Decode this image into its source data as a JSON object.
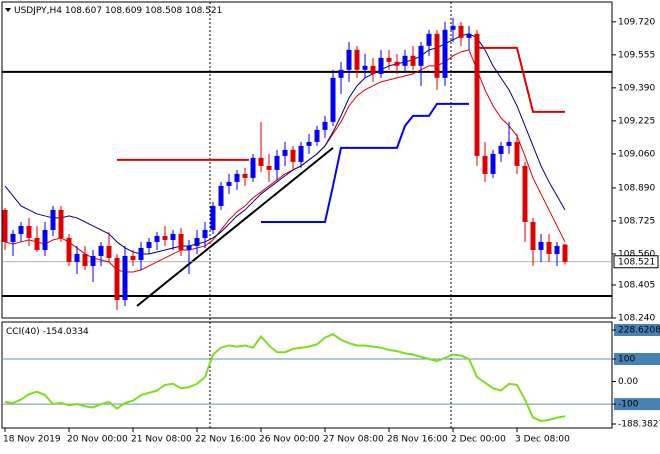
{
  "chart_data": [
    {
      "type": "candlestick",
      "title": "USDJPY,H4",
      "bull_color": "#0000ff",
      "bear_color": "#e00000",
      "open": [
        108.78,
        108.62,
        108.66,
        108.7,
        108.64,
        108.58,
        108.68,
        108.78,
        108.64,
        108.52,
        108.56,
        108.5,
        108.55,
        108.6,
        108.54,
        108.33,
        108.55,
        108.53,
        108.59,
        108.62,
        108.65,
        108.63,
        108.66,
        108.58,
        108.6,
        108.64,
        108.68,
        108.8,
        108.9,
        108.92,
        108.96,
        108.94,
        109.04,
        109.0,
        108.98,
        109.05,
        109.08,
        109.02,
        109.1,
        109.12,
        109.18,
        109.22,
        109.44,
        109.48,
        109.58,
        109.48,
        109.5,
        109.46,
        109.54,
        109.52,
        109.5,
        109.55,
        109.5,
        109.6,
        109.66,
        109.44,
        109.68,
        109.7,
        109.64,
        109.66,
        109.05,
        108.96,
        109.06,
        109.1,
        109.12,
        109.0,
        108.72,
        108.58,
        108.62,
        108.56,
        108.607
      ],
      "high": [
        108.79,
        108.68,
        108.72,
        108.74,
        108.7,
        108.72,
        108.8,
        108.8,
        108.66,
        108.6,
        108.6,
        108.58,
        108.62,
        108.67,
        108.56,
        108.6,
        108.58,
        108.62,
        108.64,
        108.67,
        108.7,
        108.68,
        108.69,
        108.63,
        108.68,
        108.72,
        108.82,
        108.92,
        108.96,
        108.98,
        108.99,
        109.06,
        109.22,
        109.06,
        109.08,
        109.12,
        109.1,
        109.12,
        109.16,
        109.2,
        109.25,
        109.48,
        109.52,
        109.62,
        109.6,
        109.56,
        109.54,
        109.58,
        109.58,
        109.56,
        109.58,
        109.6,
        109.62,
        109.68,
        109.68,
        109.72,
        109.74,
        109.72,
        109.7,
        109.68,
        109.12,
        109.08,
        109.12,
        109.22,
        109.16,
        109.02,
        108.74,
        108.66,
        108.66,
        108.62,
        108.609
      ],
      "low": [
        108.58,
        108.55,
        108.62,
        108.6,
        108.57,
        108.55,
        108.65,
        108.62,
        108.5,
        108.46,
        108.48,
        108.42,
        108.5,
        108.52,
        108.28,
        108.3,
        108.5,
        108.48,
        108.56,
        108.58,
        108.6,
        108.58,
        108.55,
        108.46,
        108.56,
        108.59,
        108.66,
        108.78,
        108.86,
        108.88,
        108.9,
        108.92,
        108.97,
        108.92,
        108.93,
        109.0,
        108.98,
        108.99,
        109.06,
        109.1,
        109.14,
        109.2,
        109.36,
        109.42,
        109.44,
        109.44,
        109.42,
        109.44,
        109.48,
        109.46,
        109.47,
        109.48,
        109.4,
        109.55,
        109.38,
        109.4,
        109.62,
        109.6,
        109.58,
        109.0,
        108.92,
        108.94,
        109.02,
        109.06,
        108.96,
        108.62,
        108.5,
        108.52,
        108.52,
        108.5,
        108.508
      ],
      "close": [
        108.62,
        108.66,
        108.7,
        108.64,
        108.58,
        108.68,
        108.78,
        108.64,
        108.52,
        108.56,
        108.5,
        108.55,
        108.6,
        108.54,
        108.33,
        108.55,
        108.53,
        108.59,
        108.62,
        108.65,
        108.63,
        108.66,
        108.58,
        108.6,
        108.64,
        108.68,
        108.8,
        108.9,
        108.92,
        108.96,
        108.94,
        109.04,
        109.0,
        108.98,
        109.05,
        109.08,
        109.02,
        109.1,
        109.12,
        109.18,
        109.22,
        109.44,
        109.48,
        109.58,
        109.48,
        109.5,
        109.46,
        109.54,
        109.52,
        109.5,
        109.55,
        109.5,
        109.6,
        109.66,
        109.44,
        109.68,
        109.7,
        109.64,
        109.66,
        109.05,
        108.96,
        109.06,
        109.1,
        109.12,
        109.0,
        108.72,
        108.58,
        108.62,
        108.56,
        108.6,
        108.521
      ],
      "series": [
        {
          "color": "#e00000",
          "values": [
            108.62,
            108.61,
            108.62,
            108.63,
            108.62,
            108.61,
            108.63,
            108.64,
            108.62,
            108.59,
            108.56,
            108.54,
            108.53,
            108.52,
            108.48,
            108.47,
            108.47,
            108.48,
            108.5,
            108.52,
            108.54,
            108.56,
            108.58,
            108.58,
            108.59,
            108.6,
            108.63,
            108.68,
            108.73,
            108.77,
            108.8,
            108.84,
            108.87,
            108.9,
            108.93,
            108.96,
            108.98,
            109.0,
            109.03,
            109.06,
            109.1,
            109.16,
            109.22,
            109.3,
            109.35,
            109.38,
            109.4,
            109.42,
            109.43,
            109.44,
            109.45,
            109.46,
            109.48,
            109.5,
            109.5,
            109.52,
            109.55,
            109.57,
            109.58,
            109.48,
            109.38,
            109.3,
            109.24,
            109.2,
            109.15,
            109.05,
            108.94,
            108.86,
            108.78,
            108.7,
            108.62
          ]
        },
        {
          "color": "#000080",
          "values": [
            108.9,
            108.85,
            108.8,
            108.78,
            108.76,
            108.75,
            108.74,
            108.74,
            108.75,
            108.74,
            108.72,
            108.7,
            108.68,
            108.66,
            108.62,
            108.59,
            108.57,
            108.56,
            108.56,
            108.57,
            108.58,
            108.59,
            108.6,
            108.6,
            108.61,
            108.62,
            108.64,
            108.67,
            108.71,
            108.75,
            108.78,
            108.82,
            108.86,
            108.89,
            108.92,
            108.95,
            108.98,
            109.0,
            109.03,
            109.06,
            109.1,
            109.17,
            109.25,
            109.34,
            109.4,
            109.44,
            109.46,
            109.48,
            109.5,
            109.51,
            109.52,
            109.53,
            109.55,
            109.58,
            109.59,
            109.61,
            109.63,
            109.65,
            109.66,
            109.64,
            109.58,
            109.5,
            109.44,
            109.38,
            109.3,
            109.2,
            109.1,
            109.0,
            108.92,
            108.85,
            108.78
          ]
        },
        {
          "color": "#0000ff",
          "values": [
            null,
            null,
            null,
            null,
            null,
            null,
            null,
            null,
            null,
            null,
            null,
            null,
            null,
            null,
            null,
            null,
            null,
            null,
            null,
            null,
            null,
            null,
            null,
            null,
            null,
            null,
            null,
            null,
            null,
            null,
            null,
            null,
            108.72,
            108.72,
            108.72,
            108.72,
            108.72,
            108.72,
            108.72,
            108.72,
            108.72,
            108.9,
            109.09,
            109.09,
            109.09,
            109.09,
            109.09,
            109.09,
            109.09,
            109.09,
            109.2,
            109.25,
            109.25,
            109.25,
            109.31,
            109.31,
            109.31,
            109.31,
            109.31,
            null,
            null,
            null,
            null,
            null,
            null,
            null,
            null,
            null,
            null,
            null,
            null
          ]
        },
        {
          "color": "#e00000",
          "values": [
            null,
            null,
            null,
            null,
            null,
            null,
            null,
            null,
            null,
            null,
            null,
            null,
            null,
            null,
            null,
            null,
            null,
            null,
            null,
            null,
            null,
            null,
            null,
            null,
            null,
            null,
            null,
            null,
            null,
            null,
            null,
            null,
            null,
            null,
            null,
            null,
            null,
            null,
            null,
            null,
            null,
            null,
            null,
            null,
            null,
            null,
            null,
            null,
            null,
            null,
            null,
            null,
            null,
            null,
            null,
            null,
            null,
            null,
            null,
            109.59,
            109.59,
            109.59,
            109.59,
            109.59,
            109.59,
            109.43,
            109.27,
            109.27,
            109.27,
            109.27,
            109.27
          ]
        }
      ],
      "levels": [
        109.47,
        108.35
      ],
      "segment": {
        "x": [
          14,
          30.5
        ],
        "y": 109.03,
        "color": "#e00000"
      },
      "trendline": {
        "x": [
          16.5,
          41
        ],
        "y": [
          108.3,
          109.09
        ]
      },
      "ylim": [
        108.24,
        109.819
      ],
      "yticks": [
        {
          "value": 109.72,
          "label": "109.720"
        },
        {
          "value": 109.555,
          "label": "109.555"
        },
        {
          "value": 109.39,
          "label": "109.390"
        },
        {
          "value": 109.225,
          "label": "109.225"
        },
        {
          "value": 109.06,
          "label": "109.060"
        },
        {
          "value": 108.89,
          "label": "108.890"
        },
        {
          "value": 108.725,
          "label": "108.725"
        },
        {
          "value": 108.56,
          "label": "108.560"
        },
        {
          "value": 108.405,
          "label": "108.405"
        },
        {
          "value": 108.24,
          "label": "108.240"
        }
      ],
      "xticks": [
        {
          "value": 0,
          "label": "18 Nov 2019"
        },
        {
          "value": 8,
          "label": "20 Nov 00:00"
        },
        {
          "value": 16,
          "label": "21 Nov 08:00"
        },
        {
          "value": 24,
          "label": "22 Nov 16:00"
        },
        {
          "value": 32,
          "label": "26 Nov 00:00"
        },
        {
          "value": 40,
          "label": "27 Nov 08:00"
        },
        {
          "value": 48,
          "label": "28 Nov 16:00"
        },
        {
          "value": 56,
          "label": "2 Dec 00:00"
        },
        {
          "value": 64,
          "label": "3 Dec 08:00"
        }
      ]
    },
    {
      "type": "line",
      "title": "CCI(40)",
      "color": "#7fdd1f",
      "values": [
        -90,
        -95,
        -80,
        -56,
        -45,
        -60,
        -100,
        -95,
        -105,
        -100,
        -110,
        -115,
        -100,
        -90,
        -120,
        -95,
        -85,
        -60,
        -50,
        -40,
        -15,
        -10,
        -30,
        -25,
        -10,
        20,
        120,
        150,
        160,
        155,
        160,
        150,
        200,
        160,
        130,
        130,
        145,
        150,
        155,
        165,
        195,
        210,
        185,
        170,
        160,
        160,
        155,
        150,
        140,
        135,
        125,
        120,
        110,
        100,
        90,
        105,
        120,
        115,
        100,
        20,
        -5,
        -30,
        -40,
        -10,
        -15,
        -80,
        -160,
        -175,
        -170,
        -160,
        -154.0334
      ],
      "levels": [
        100,
        -100
      ],
      "ylim": [
        -188.3827,
        228.6208
      ],
      "yticks": [
        228.6208,
        100,
        {
          "value": 0,
          "label": "0.00"
        },
        -100,
        -188.3827
      ]
    }
  ]
}
